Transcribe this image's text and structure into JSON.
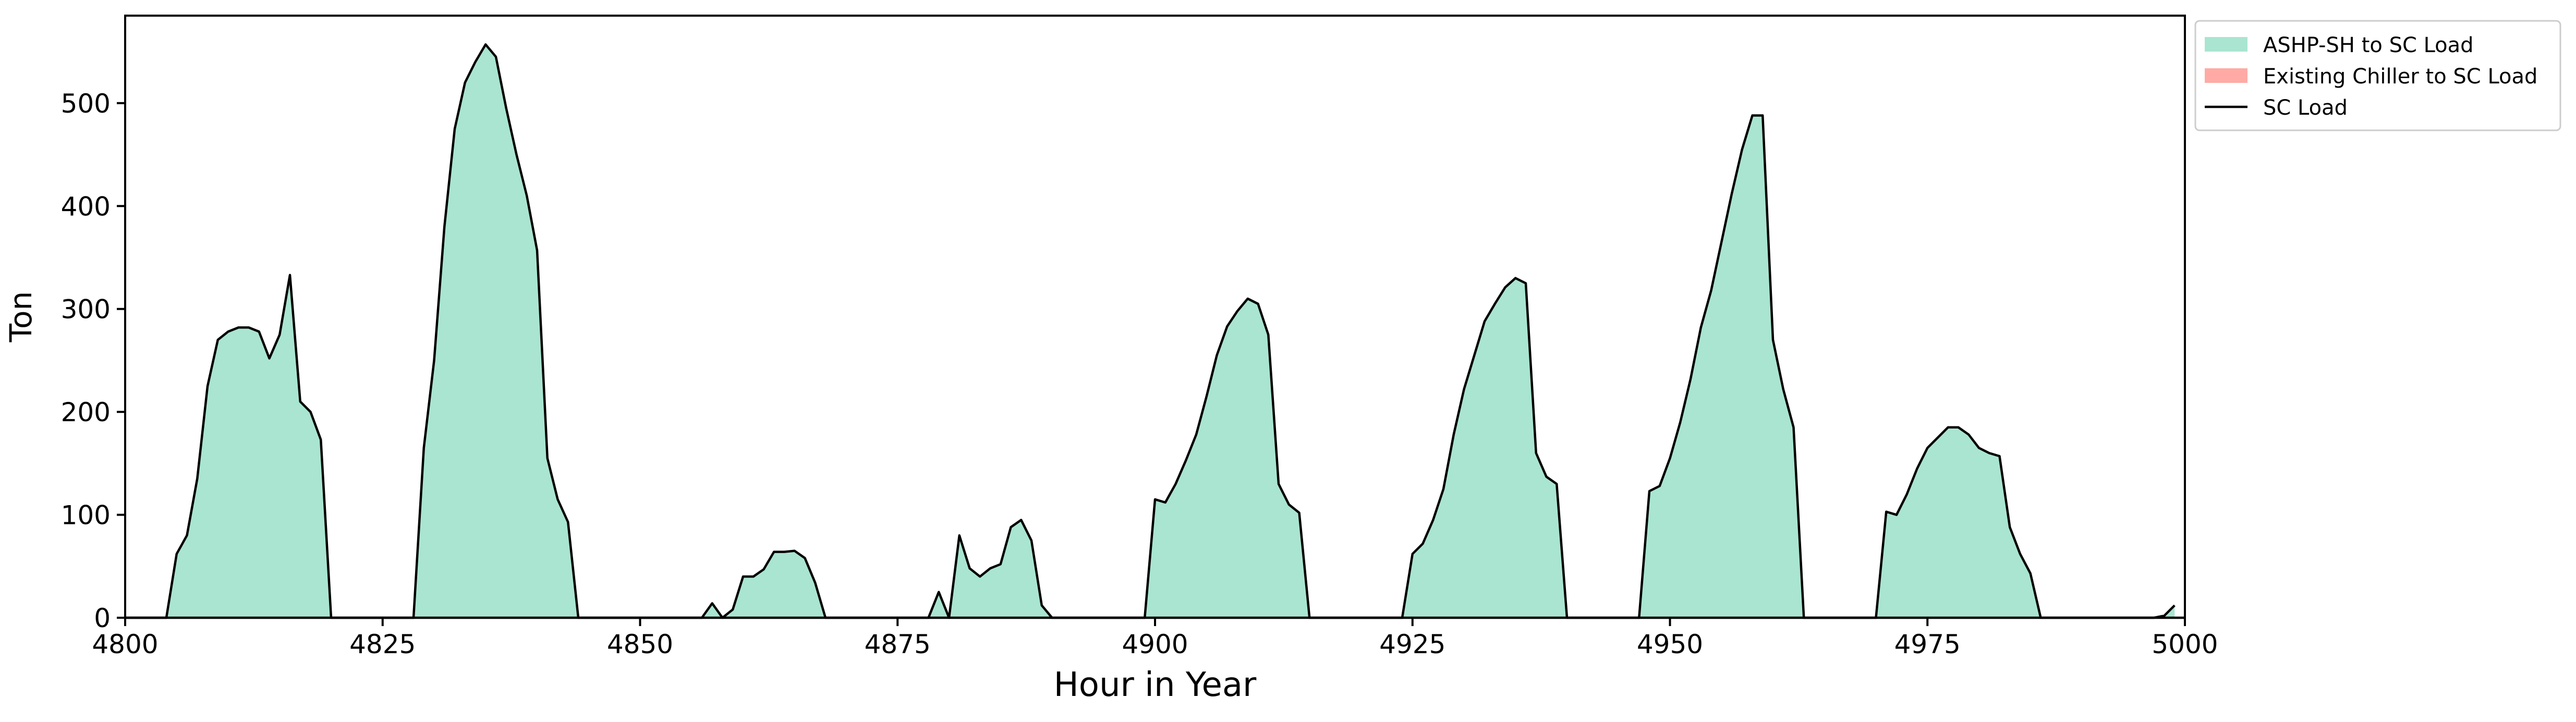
{
  "chart_data": {
    "type": "area",
    "title": "",
    "xlabel": "Hour in Year",
    "ylabel": "Ton",
    "xlim": [
      4800,
      5000
    ],
    "ylim": [
      0,
      585
    ],
    "xticks": [
      4800,
      4825,
      4850,
      4875,
      4900,
      4925,
      4950,
      4975,
      5000
    ],
    "yticks": [
      0,
      100,
      200,
      300,
      400,
      500
    ],
    "grid": false,
    "legend_position": "upper-right-outside",
    "series": [
      {
        "name": "ASHP-SH to SC Load",
        "kind": "area",
        "color": "#a9e5d1"
      },
      {
        "name": "Existing Chiller to SC Load",
        "kind": "area",
        "color": "#ffaaa5"
      },
      {
        "name": "SC Load",
        "kind": "line",
        "color": "#000000"
      }
    ],
    "x": [
      4800,
      4801,
      4802,
      4803,
      4804,
      4805,
      4806,
      4807,
      4808,
      4809,
      4810,
      4811,
      4812,
      4813,
      4814,
      4815,
      4816,
      4817,
      4818,
      4819,
      4820,
      4821,
      4822,
      4823,
      4824,
      4825,
      4826,
      4827,
      4828,
      4829,
      4830,
      4831,
      4832,
      4833,
      4834,
      4835,
      4836,
      4837,
      4838,
      4839,
      4840,
      4841,
      4842,
      4843,
      4844,
      4845,
      4846,
      4847,
      4848,
      4849,
      4850,
      4851,
      4852,
      4853,
      4854,
      4855,
      4856,
      4857,
      4858,
      4859,
      4860,
      4861,
      4862,
      4863,
      4864,
      4865,
      4866,
      4867,
      4868,
      4869,
      4870,
      4871,
      4872,
      4873,
      4874,
      4875,
      4876,
      4877,
      4878,
      4879,
      4880,
      4881,
      4882,
      4883,
      4884,
      4885,
      4886,
      4887,
      4888,
      4889,
      4890,
      4891,
      4892,
      4893,
      4894,
      4895,
      4896,
      4897,
      4898,
      4899,
      4900,
      4901,
      4902,
      4903,
      4904,
      4905,
      4906,
      4907,
      4908,
      4909,
      4910,
      4911,
      4912,
      4913,
      4914,
      4915,
      4916,
      4917,
      4918,
      4919,
      4920,
      4921,
      4922,
      4923,
      4924,
      4925,
      4926,
      4927,
      4928,
      4929,
      4930,
      4931,
      4932,
      4933,
      4934,
      4935,
      4936,
      4937,
      4938,
      4939,
      4940,
      4941,
      4942,
      4943,
      4944,
      4945,
      4946,
      4947,
      4948,
      4949,
      4950,
      4951,
      4952,
      4953,
      4954,
      4955,
      4956,
      4957,
      4958,
      4959,
      4960,
      4961,
      4962,
      4963,
      4964,
      4965,
      4966,
      4967,
      4968,
      4969,
      4970,
      4971,
      4972,
      4973,
      4974,
      4975,
      4976,
      4977,
      4978,
      4979,
      4980,
      4981,
      4982,
      4983,
      4984,
      4985,
      4986,
      4987,
      4988,
      4989,
      4990,
      4991,
      4992,
      4993,
      4994,
      4995,
      4996,
      4997,
      4998,
      4999
    ],
    "sc_load": [
      0,
      0,
      0,
      0,
      0,
      62,
      80,
      135,
      225,
      270,
      278,
      282,
      282,
      278,
      252,
      275,
      333,
      210,
      200,
      173,
      0,
      0,
      0,
      0,
      0,
      0,
      0,
      0,
      0,
      165,
      250,
      380,
      475,
      520,
      540,
      557,
      545,
      495,
      450,
      410,
      357,
      155,
      115,
      93,
      0,
      0,
      0,
      0,
      0,
      0,
      0,
      0,
      0,
      0,
      0,
      0,
      0,
      14,
      0,
      8,
      40,
      40,
      47,
      64,
      64,
      65,
      58,
      34,
      0,
      0,
      0,
      0,
      0,
      0,
      0,
      0,
      0,
      0,
      0,
      25,
      0,
      80,
      48,
      40,
      48,
      52,
      88,
      95,
      75,
      12,
      0,
      0,
      0,
      0,
      0,
      0,
      0,
      0,
      0,
      0,
      115,
      112,
      130,
      153,
      178,
      215,
      255,
      283,
      298,
      310,
      305,
      275,
      130,
      110,
      102,
      0,
      0,
      0,
      0,
      0,
      0,
      0,
      0,
      0,
      0,
      62,
      72,
      95,
      125,
      178,
      222,
      255,
      288,
      305,
      321,
      330,
      325,
      160,
      137,
      130,
      0,
      0,
      0,
      0,
      0,
      0,
      0,
      0,
      123,
      128,
      155,
      190,
      232,
      282,
      318,
      365,
      412,
      455,
      488,
      488,
      270,
      222,
      185,
      0,
      0,
      0,
      0,
      0,
      0,
      0,
      0,
      103,
      100,
      120,
      145,
      165,
      175,
      185,
      185,
      178,
      165,
      160,
      157,
      88,
      62,
      43,
      0,
      0,
      0,
      0,
      0,
      0,
      0,
      0,
      0,
      0,
      0,
      0,
      2,
      12,
      26
    ],
    "chiller_to_sc": [
      0,
      0,
      0,
      0,
      0,
      0,
      0,
      0,
      0,
      0,
      0,
      0,
      0,
      0,
      0,
      0,
      0,
      0,
      0,
      0,
      0,
      0,
      0,
      0,
      0,
      0,
      0,
      0,
      0,
      0,
      0,
      0,
      0,
      0,
      0,
      0,
      0,
      0,
      0,
      0,
      0,
      0,
      0,
      0,
      0,
      0,
      0,
      0,
      0,
      0,
      0,
      0,
      0,
      0,
      0,
      0,
      0,
      0,
      0,
      0,
      0,
      0,
      0,
      0,
      0,
      0,
      0,
      0,
      0,
      0,
      0,
      0,
      0,
      0,
      0,
      0,
      0,
      0,
      0,
      0,
      0,
      0,
      0,
      0,
      0,
      0,
      0,
      0,
      0,
      0,
      0,
      0,
      0,
      0,
      0,
      0,
      0,
      0,
      0,
      0,
      0,
      0,
      0,
      0,
      0,
      0,
      0,
      0,
      0,
      0,
      0,
      0,
      0,
      0,
      0,
      0,
      0,
      0,
      0,
      0,
      0,
      0,
      0,
      0,
      0,
      0,
      0,
      0,
      0,
      0,
      0,
      0,
      0,
      0,
      0,
      0,
      0,
      0,
      0,
      0,
      0,
      0,
      0,
      0,
      0,
      0,
      0,
      0,
      0,
      0,
      0,
      0,
      0,
      0,
      0,
      0,
      0,
      0,
      0,
      0,
      0,
      0,
      0,
      0,
      0,
      0,
      0,
      0,
      0,
      0,
      0,
      0,
      0,
      0,
      0,
      0,
      0,
      0,
      0,
      0,
      0,
      0,
      0,
      0,
      0,
      0,
      0,
      0,
      0,
      0,
      0,
      0,
      0,
      0,
      0,
      0,
      0,
      0,
      0,
      0,
      0,
      0,
      0,
      0
    ]
  }
}
